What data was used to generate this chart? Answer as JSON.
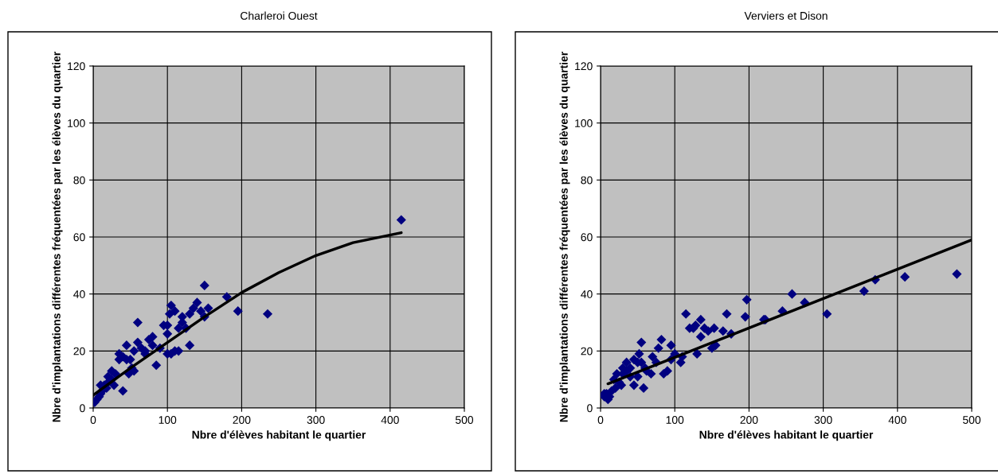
{
  "chart_data": [
    {
      "type": "scatter",
      "title": "Charleroi Ouest",
      "xlabel": "Nbre d'élèves habitant le quartier",
      "ylabel": "Nbre d'implantations différentes fréquentées par les élèves du quartier",
      "xlim": [
        0,
        500
      ],
      "xticks": [
        0,
        100,
        200,
        300,
        400,
        500
      ],
      "ylim": [
        0,
        120
      ],
      "yticks": [
        0,
        20,
        40,
        60,
        80,
        100,
        120
      ],
      "grid": true,
      "legend": false,
      "series": [
        {
          "marker": "diamond",
          "color": "#000080",
          "x": [
            415,
            235,
            195,
            180,
            150,
            155,
            150,
            140,
            145,
            135,
            130,
            125,
            130,
            120,
            120,
            115,
            110,
            105,
            103,
            100,
            100,
            105,
            110,
            115,
            100,
            95,
            85,
            80,
            80,
            75,
            70,
            65,
            60,
            60,
            55,
            55,
            50,
            45,
            45,
            40,
            35,
            40,
            35,
            30,
            25,
            25,
            20,
            15,
            10,
            10,
            5,
            2,
            8,
            12,
            18,
            20,
            28,
            48,
            52,
            70,
            90
          ],
          "values": [
            66,
            33,
            34,
            39,
            43,
            35,
            32,
            37,
            34,
            35,
            33,
            28,
            22,
            32,
            30,
            28,
            34,
            36,
            33,
            29,
            26,
            19,
            20,
            20,
            19,
            29,
            15,
            25,
            22,
            24,
            20,
            21,
            23,
            30,
            20,
            13,
            17,
            22,
            17,
            18,
            17,
            6,
            19,
            12,
            13,
            10,
            9,
            8,
            8,
            5,
            3,
            2,
            4,
            6,
            7,
            11,
            8,
            12,
            14,
            19,
            21
          ]
        },
        {
          "type": "line",
          "marker": "none",
          "color": "#000000",
          "x": [
            0,
            50,
            100,
            150,
            200,
            250,
            300,
            350,
            415
          ],
          "values": [
            4.5,
            14,
            23,
            32,
            40.5,
            47.5,
            53.5,
            58,
            61.5
          ]
        }
      ]
    },
    {
      "type": "scatter",
      "title": "Verviers et Dison",
      "xlabel": "Nbre d'élèves habitant le quartier",
      "ylabel": "Nbre d'implantations différentes fréquentées par les élèves du quartier",
      "xlim": [
        0,
        500
      ],
      "xticks": [
        0,
        100,
        200,
        300,
        400,
        500
      ],
      "ylim": [
        0,
        120
      ],
      "yticks": [
        0,
        20,
        40,
        60,
        80,
        100,
        120
      ],
      "grid": true,
      "legend": false,
      "series": [
        {
          "marker": "diamond",
          "color": "#000080",
          "x": [
            480,
            410,
            370,
            355,
            305,
            275,
            258,
            245,
            222,
            220,
            197,
            195,
            176,
            170,
            165,
            155,
            150,
            153,
            145,
            140,
            135,
            135,
            130,
            128,
            125,
            120,
            115,
            110,
            108,
            100,
            95,
            95,
            90,
            85,
            82,
            78,
            75,
            70,
            68,
            62,
            55,
            55,
            52,
            50,
            50,
            45,
            45,
            40,
            40,
            35,
            35,
            30,
            28,
            25,
            22,
            20,
            15,
            12,
            10,
            8,
            5,
            5,
            18,
            30,
            58,
            60
          ],
          "values": [
            47,
            46,
            45,
            41,
            33,
            37,
            40,
            34,
            31,
            31,
            38,
            32,
            26,
            33,
            27,
            22,
            21,
            28,
            27,
            28,
            31,
            25,
            19,
            29,
            28,
            28,
            33,
            18,
            16,
            19,
            22,
            17,
            13,
            12,
            24,
            21,
            16,
            18,
            12,
            13,
            16,
            23,
            19,
            16,
            11,
            8,
            17,
            11,
            14,
            13,
            16,
            12,
            8,
            9,
            12,
            7,
            6,
            4,
            3,
            5,
            4,
            5,
            10,
            14,
            7,
            14
          ]
        },
        {
          "type": "line",
          "marker": "none",
          "color": "#000000",
          "x": [
            10,
            500
          ],
          "values": [
            8.5,
            59
          ]
        }
      ]
    }
  ]
}
